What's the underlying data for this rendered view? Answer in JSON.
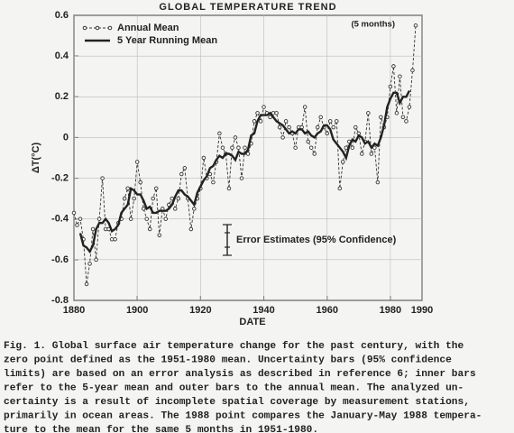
{
  "chart_data": {
    "type": "line",
    "title": "GLOBAL TEMPERATURE TREND",
    "xlabel": "DATE",
    "ylabel": "ΔT(°C)",
    "xlim": [
      1880,
      1990
    ],
    "ylim": [
      -0.8,
      0.6
    ],
    "xticks": [
      1880,
      1900,
      1920,
      1940,
      1960,
      1980,
      1990
    ],
    "yticks": [
      -0.8,
      -0.6,
      -0.4,
      -0.2,
      0,
      0.2,
      0.4,
      0.6
    ],
    "grid": true,
    "legend": "upper left",
    "annotations": [
      "(5 months)",
      "Error Estimates (95% Confidence)"
    ],
    "series": [
      {
        "name": "Annual Mean",
        "color": "#333333",
        "style": "dashed-markers",
        "x": [
          1880,
          1881,
          1882,
          1883,
          1884,
          1885,
          1886,
          1887,
          1888,
          1889,
          1890,
          1891,
          1892,
          1893,
          1894,
          1895,
          1896,
          1897,
          1898,
          1899,
          1900,
          1901,
          1902,
          1903,
          1904,
          1905,
          1906,
          1907,
          1908,
          1909,
          1910,
          1911,
          1912,
          1913,
          1914,
          1915,
          1916,
          1917,
          1918,
          1919,
          1920,
          1921,
          1922,
          1923,
          1924,
          1925,
          1926,
          1927,
          1928,
          1929,
          1930,
          1931,
          1932,
          1933,
          1934,
          1935,
          1936,
          1937,
          1938,
          1939,
          1940,
          1941,
          1942,
          1943,
          1944,
          1945,
          1946,
          1947,
          1948,
          1949,
          1950,
          1951,
          1952,
          1953,
          1954,
          1955,
          1956,
          1957,
          1958,
          1959,
          1960,
          1961,
          1962,
          1963,
          1964,
          1965,
          1966,
          1967,
          1968,
          1969,
          1970,
          1971,
          1972,
          1973,
          1974,
          1975,
          1976,
          1977,
          1978,
          1979,
          1980,
          1981,
          1982,
          1983,
          1984,
          1985,
          1986,
          1987,
          1988
        ],
        "values": [
          -0.37,
          -0.43,
          -0.4,
          -0.5,
          -0.72,
          -0.62,
          -0.45,
          -0.6,
          -0.4,
          -0.2,
          -0.45,
          -0.45,
          -0.5,
          -0.5,
          -0.42,
          -0.4,
          -0.3,
          -0.25,
          -0.4,
          -0.3,
          -0.12,
          -0.22,
          -0.35,
          -0.4,
          -0.45,
          -0.3,
          -0.25,
          -0.48,
          -0.35,
          -0.4,
          -0.33,
          -0.3,
          -0.35,
          -0.3,
          -0.18,
          -0.15,
          -0.3,
          -0.45,
          -0.35,
          -0.3,
          -0.25,
          -0.1,
          -0.2,
          -0.18,
          -0.22,
          -0.12,
          0.02,
          -0.05,
          -0.08,
          -0.25,
          -0.05,
          0,
          -0.05,
          -0.2,
          -0.05,
          -0.08,
          -0.03,
          0.08,
          0.12,
          0.08,
          0.15,
          0.12,
          0.1,
          0.12,
          0.12,
          0.05,
          0,
          0.08,
          0.05,
          0.02,
          -0.05,
          0.05,
          0.05,
          0.15,
          -0.02,
          -0.05,
          -0.08,
          0.05,
          0.1,
          0.05,
          0.02,
          0.08,
          0.05,
          0.08,
          -0.25,
          -0.12,
          -0.05,
          -0.02,
          -0.05,
          0.05,
          0.02,
          -0.08,
          -0.02,
          0.12,
          -0.08,
          -0.05,
          -0.22,
          0.1,
          0.05,
          0.1,
          0.25,
          0.35,
          0.12,
          0.3,
          0.1,
          0.08,
          0.15,
          0.33,
          0.55
        ]
      },
      {
        "name": "5 Year Running Mean",
        "color": "#222222",
        "style": "solid",
        "x": [
          1882,
          1883,
          1884,
          1885,
          1886,
          1887,
          1888,
          1889,
          1890,
          1891,
          1892,
          1893,
          1894,
          1895,
          1896,
          1897,
          1898,
          1899,
          1900,
          1901,
          1902,
          1903,
          1904,
          1905,
          1906,
          1907,
          1908,
          1909,
          1910,
          1911,
          1912,
          1913,
          1914,
          1915,
          1916,
          1917,
          1918,
          1919,
          1920,
          1921,
          1922,
          1923,
          1924,
          1925,
          1926,
          1927,
          1928,
          1929,
          1930,
          1931,
          1932,
          1933,
          1934,
          1935,
          1936,
          1937,
          1938,
          1939,
          1940,
          1941,
          1942,
          1943,
          1944,
          1945,
          1946,
          1947,
          1948,
          1949,
          1950,
          1951,
          1952,
          1953,
          1954,
          1955,
          1956,
          1957,
          1958,
          1959,
          1960,
          1961,
          1962,
          1963,
          1964,
          1965,
          1966,
          1967,
          1968,
          1969,
          1970,
          1971,
          1972,
          1973,
          1974,
          1975,
          1976,
          1977,
          1978,
          1979,
          1980,
          1981,
          1982,
          1983,
          1984,
          1985,
          1986
        ],
        "values": [
          -0.47,
          -0.53,
          -0.54,
          -0.56,
          -0.53,
          -0.45,
          -0.42,
          -0.42,
          -0.4,
          -0.42,
          -0.46,
          -0.45,
          -0.43,
          -0.37,
          -0.35,
          -0.33,
          -0.25,
          -0.26,
          -0.28,
          -0.28,
          -0.31,
          -0.35,
          -0.34,
          -0.37,
          -0.37,
          -0.36,
          -0.36,
          -0.36,
          -0.35,
          -0.33,
          -0.29,
          -0.26,
          -0.26,
          -0.28,
          -0.29,
          -0.31,
          -0.33,
          -0.27,
          -0.24,
          -0.21,
          -0.19,
          -0.15,
          -0.14,
          -0.11,
          -0.09,
          -0.1,
          -0.08,
          -0.08,
          -0.09,
          -0.11,
          -0.07,
          -0.08,
          -0.08,
          -0.06,
          0.01,
          0.02,
          0.08,
          0.11,
          0.11,
          0.11,
          0.12,
          0.1,
          0.08,
          0.07,
          0.06,
          0.04,
          0.02,
          0.03,
          0.02,
          0.04,
          0.04,
          0.02,
          0.03,
          0.01,
          0,
          0.02,
          0.03,
          0.06,
          0.06,
          0.04,
          -0.01,
          -0.03,
          -0.05,
          -0.07,
          -0.1,
          -0.04,
          -0.01,
          -0.02,
          0.01,
          0,
          -0.03,
          -0.02,
          -0.05,
          -0.03,
          -0.04,
          0,
          0.06,
          0.15,
          0.19,
          0.22,
          0.22,
          0.17,
          0.2,
          0.2,
          0.23
        ]
      }
    ],
    "caption": [
      "Fig. 1.  Global surface air temperature change for the past century, with the",
      "zero point defined as the 1951-1980 mean.  Uncertainty bars (95% confidence",
      "limits) are based on an error analysis as described in reference 6; inner bars",
      "refer to the 5-year mean and outer bars to the annual mean.  The analyzed un-",
      "certainty is a result of incomplete spatial coverage by measurement stations,",
      "primarily in ocean areas.  The 1988 point compares the January-May 1988 tempera-",
      "ture to the mean for the same 5 months in 1951-1980."
    ]
  }
}
